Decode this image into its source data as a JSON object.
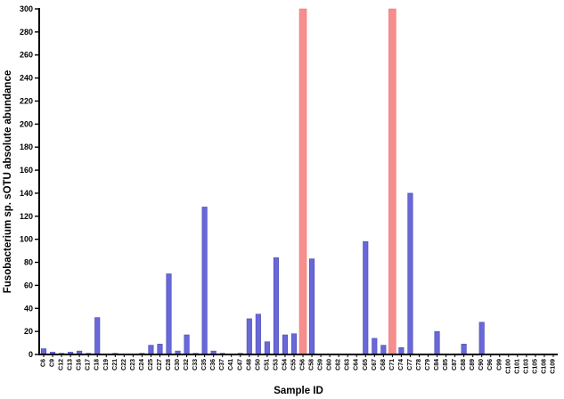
{
  "figure": {
    "background": "#ffffff"
  },
  "chart_data": {
    "type": "bar",
    "title": "",
    "xlabel": "Sample ID",
    "ylabel": "Fusobacterium sp. sOTU absolute abundance",
    "ylim": [
      0,
      300
    ],
    "ytick_step": 20,
    "grid": false,
    "legend": "none",
    "categories": [
      "C6",
      "C9",
      "C12",
      "C13",
      "C16",
      "C17",
      "C18",
      "C19",
      "C21",
      "C22",
      "C23",
      "C24",
      "C25",
      "C27",
      "C28",
      "C30",
      "C32",
      "C33",
      "C35",
      "C36",
      "C37",
      "C41",
      "C47",
      "C48",
      "C50",
      "C51",
      "C53",
      "C54",
      "C55",
      "C56",
      "C58",
      "C59",
      "C60",
      "C62",
      "C63",
      "C64",
      "C65",
      "C67",
      "C68",
      "C71",
      "C74",
      "C77",
      "C78",
      "C79",
      "C84",
      "C85",
      "C87",
      "C88",
      "C89",
      "C90",
      "C96",
      "C99",
      "C100",
      "C101",
      "C103",
      "C105",
      "C108",
      "C109"
    ],
    "values": [
      5,
      2,
      1,
      2,
      3,
      1,
      32,
      0,
      1,
      0,
      0,
      1,
      8,
      9,
      70,
      3,
      17,
      1,
      128,
      3,
      1,
      0,
      1,
      31,
      35,
      11,
      84,
      17,
      18,
      300,
      83,
      0,
      0,
      0,
      0,
      0,
      98,
      14,
      8,
      300,
      6,
      140,
      0,
      0,
      20,
      0,
      0,
      9,
      0,
      28,
      0,
      0,
      0,
      0,
      0,
      0,
      0,
      0
    ],
    "highlighted_samples": [
      "C56",
      "C71"
    ],
    "highlight_capped_at": 300,
    "colors": {
      "bar": "#6868d8",
      "bar_edge": "#4a4ab8",
      "highlight": "#f68e8e",
      "highlight_edge": "#ee7a7a",
      "axis": "#000000"
    }
  }
}
